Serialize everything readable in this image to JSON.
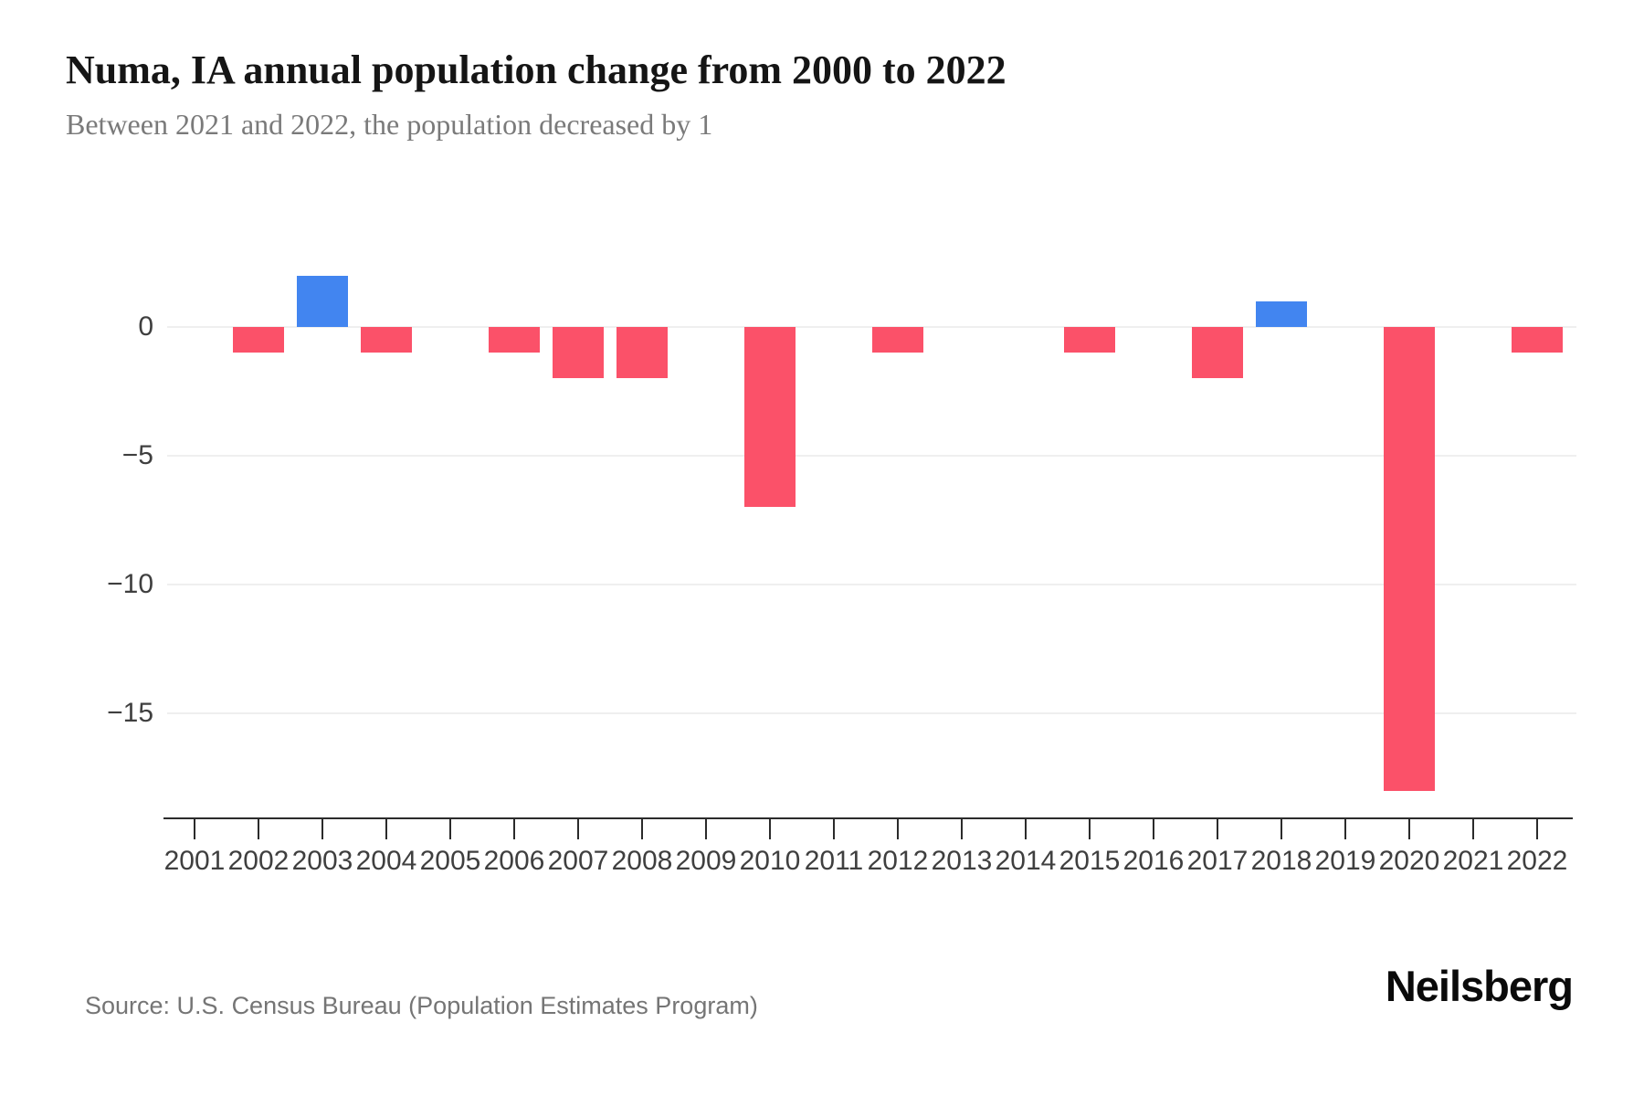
{
  "header": {
    "title": "Numa, IA annual population change from 2000 to 2022",
    "subtitle": "Between 2021 and 2022, the population decreased by 1"
  },
  "footer": {
    "source": "Source: U.S. Census Bureau (Population Estimates Program)",
    "brand": "Neilsberg"
  },
  "chart_data": {
    "type": "bar",
    "title": "Numa, IA annual population change from 2000 to 2022",
    "xlabel": "",
    "ylabel": "",
    "categories": [
      "2001",
      "2002",
      "2003",
      "2004",
      "2005",
      "2006",
      "2007",
      "2008",
      "2009",
      "2010",
      "2011",
      "2012",
      "2013",
      "2014",
      "2015",
      "2016",
      "2017",
      "2018",
      "2019",
      "2020",
      "2021",
      "2022"
    ],
    "values": [
      0,
      -1,
      2,
      -1,
      0,
      -1,
      -2,
      -2,
      0,
      -7,
      0,
      -1,
      0,
      0,
      -1,
      0,
      -2,
      1,
      0,
      -18,
      0,
      -1
    ],
    "yticks": [
      0,
      -5,
      -10,
      -15
    ],
    "ytick_labels": [
      "0",
      "−5",
      "−10",
      "−15"
    ],
    "ylim": [
      -19.1,
      2.6
    ],
    "grid": true,
    "legend_position": "none",
    "positive_color": "#4285F0",
    "negative_color": "#FB5169"
  }
}
